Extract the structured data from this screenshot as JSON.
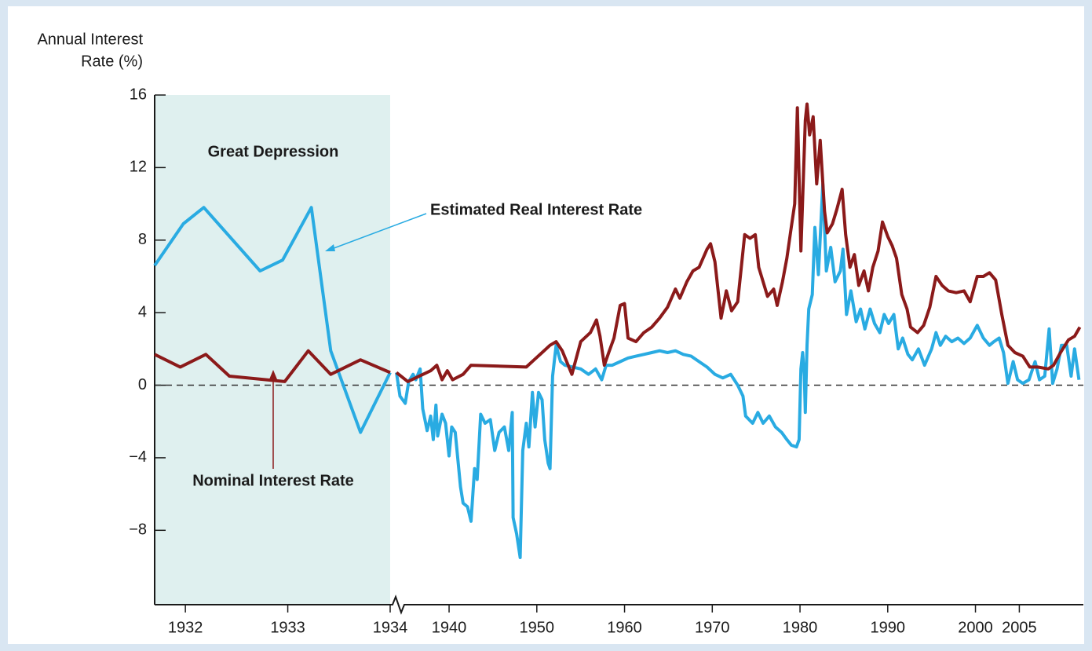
{
  "chart_data": [
    {
      "type": "line",
      "y_label": [
        "Annual Interest",
        "Rate (%)"
      ],
      "shaded_region_label": "Great Depression",
      "xlim": [
        1931.7,
        1934
      ],
      "xticks": [
        1932,
        1933,
        1934
      ],
      "ylim": [
        -12.1,
        16
      ],
      "yticks": [
        16,
        12,
        8,
        4,
        0,
        {
          "value": -4,
          "label": "−4"
        },
        {
          "value": -8,
          "label": "−8"
        }
      ],
      "series": [
        {
          "name": "Estimated Real Interest Rate",
          "color": "#29abe2",
          "x": [
            1931.7,
            1931.98,
            1932.18,
            1932.73,
            1932.95,
            1933.23,
            1933.42,
            1933.71,
            1934.0
          ],
          "values": [
            6.6,
            8.9,
            9.8,
            6.3,
            6.9,
            9.8,
            1.9,
            -2.6,
            0.7
          ]
        },
        {
          "name": "Nominal Interest Rate",
          "color": "#8b1a1a",
          "x": [
            1931.7,
            1931.95,
            1932.2,
            1932.43,
            1932.97,
            1933.2,
            1933.42,
            1933.71,
            1934.0
          ],
          "values": [
            1.7,
            1.0,
            1.7,
            0.5,
            0.2,
            1.9,
            0.6,
            1.4,
            0.7
          ]
        }
      ]
    },
    {
      "type": "line",
      "xlim": [
        1934,
        2012.3
      ],
      "xticks": [
        1940,
        1950,
        1960,
        1970,
        1980,
        1990,
        2000,
        2005
      ],
      "ylim": [
        -12.1,
        16
      ],
      "series": [
        {
          "color": "#29abe2",
          "x": [
            1934.0,
            1934.4,
            1935.0,
            1935.4,
            1935.9,
            1936.2,
            1936.7,
            1937.0,
            1937.5,
            1937.9,
            1938.2,
            1938.5,
            1938.7,
            1939.2,
            1939.6,
            1940.0,
            1940.3,
            1940.7,
            1941.3,
            1941.6,
            1942.1,
            1942.5,
            1942.9,
            1943.2,
            1943.6,
            1944.1,
            1944.7,
            1945.2,
            1945.7,
            1946.3,
            1946.8,
            1947.2,
            1947.3,
            1947.7,
            1948.1,
            1948.4,
            1948.8,
            1949.1,
            1949.5,
            1949.8,
            1950.2,
            1950.6,
            1950.9,
            1951.3,
            1951.5,
            1951.8,
            1952.2,
            1952.7,
            1953.2,
            1954.1,
            1955.0,
            1955.9,
            1956.7,
            1957.4,
            1957.9,
            1958.6,
            1959.5,
            1960.4,
            1961.3,
            1962.2,
            1963.1,
            1964.0,
            1964.9,
            1965.8,
            1966.7,
            1967.6,
            1968.5,
            1969.4,
            1970.3,
            1971.2,
            1972.1,
            1972.9,
            1973.5,
            1973.8,
            1974.6,
            1975.2,
            1975.8,
            1976.5,
            1977.2,
            1977.9,
            1978.5,
            1979.0,
            1979.6,
            1979.9,
            1980.1,
            1980.3,
            1980.5,
            1980.6,
            1980.8,
            1981.0,
            1981.4,
            1981.7,
            1982.1,
            1982.4,
            1982.6,
            1983.0,
            1983.5,
            1984.0,
            1984.6,
            1984.9,
            1985.3,
            1985.8,
            1986.4,
            1986.9,
            1987.4,
            1988.0,
            1988.5,
            1989.1,
            1989.6,
            1990.1,
            1990.7,
            1991.2,
            1991.7,
            1992.3,
            1992.8,
            1993.5,
            1994.2,
            1995.0,
            1995.5,
            1996.0,
            1996.6,
            1997.3,
            1998.0,
            1998.7,
            1999.4,
            2000.2,
            2000.9,
            2001.6,
            2002.1,
            2002.7,
            2003.2,
            2003.7,
            2004.3,
            2004.8,
            2005.4,
            2006.1,
            2006.8,
            2007.3,
            2007.9,
            2008.4,
            2008.8,
            2009.3,
            2009.8,
            2010.4,
            2010.9,
            2011.3,
            2011.8
          ],
          "values": [
            0.7,
            -0.6,
            -1.0,
            0.2,
            0.6,
            0.3,
            0.9,
            -1.3,
            -2.5,
            -1.7,
            -3.0,
            -1.1,
            -2.8,
            -1.6,
            -2.1,
            -3.9,
            -2.3,
            -2.6,
            -5.6,
            -6.5,
            -6.7,
            -7.5,
            -4.6,
            -5.2,
            -1.6,
            -2.1,
            -1.9,
            -3.6,
            -2.6,
            -2.3,
            -3.6,
            -1.5,
            -7.3,
            -8.2,
            -9.5,
            -3.6,
            -2.1,
            -3.4,
            -0.4,
            -2.3,
            -0.4,
            -0.8,
            -3.0,
            -4.3,
            -4.6,
            0.5,
            2.2,
            1.3,
            1.1,
            1.0,
            0.9,
            0.6,
            0.9,
            0.3,
            1.1,
            1.1,
            1.3,
            1.5,
            1.6,
            1.7,
            1.8,
            1.9,
            1.8,
            1.9,
            1.7,
            1.6,
            1.3,
            1.0,
            0.6,
            0.4,
            0.6,
            0.0,
            -0.6,
            -1.7,
            -2.1,
            -1.5,
            -2.1,
            -1.7,
            -2.3,
            -2.6,
            -3.0,
            -3.3,
            -3.4,
            -3.0,
            0.9,
            1.8,
            0.5,
            -1.5,
            2.2,
            4.2,
            5.0,
            8.7,
            6.1,
            9.1,
            11.1,
            6.3,
            7.6,
            5.7,
            6.3,
            7.5,
            3.9,
            5.2,
            3.5,
            4.2,
            3.1,
            4.2,
            3.4,
            2.9,
            3.9,
            3.4,
            3.9,
            2.0,
            2.6,
            1.7,
            1.4,
            2.0,
            1.1,
            2.0,
            2.9,
            2.2,
            2.7,
            2.4,
            2.6,
            2.3,
            2.6,
            3.3,
            2.6,
            2.2,
            2.4,
            2.6,
            1.8,
            0.1,
            1.3,
            0.3,
            0.1,
            0.3,
            1.3,
            0.3,
            0.5,
            3.1,
            0.1,
            0.9,
            2.2,
            2.2,
            0.5,
            2.0,
            0.3
          ]
        },
        {
          "color": "#8b1a1a",
          "x": [
            1934.0,
            1935.3,
            1937.9,
            1938.6,
            1939.2,
            1939.8,
            1940.4,
            1941.6,
            1942.5,
            1948.8,
            1949.7,
            1950.6,
            1951.5,
            1952.2,
            1952.9,
            1954.0,
            1955.0,
            1956.1,
            1956.8,
            1957.2,
            1957.7,
            1958.2,
            1958.8,
            1959.5,
            1960.0,
            1960.4,
            1961.3,
            1962.2,
            1963.1,
            1964.0,
            1964.9,
            1965.8,
            1966.3,
            1967.1,
            1967.8,
            1968.5,
            1969.4,
            1969.8,
            1970.3,
            1971.0,
            1971.6,
            1972.2,
            1972.9,
            1973.7,
            1974.3,
            1974.9,
            1975.3,
            1975.8,
            1976.3,
            1977.0,
            1977.4,
            1978.0,
            1978.5,
            1979.0,
            1979.4,
            1979.7,
            1980.1,
            1980.6,
            1980.8,
            1981.1,
            1981.5,
            1981.9,
            1982.3,
            1982.8,
            1983.1,
            1983.7,
            1984.2,
            1984.8,
            1985.2,
            1985.7,
            1986.2,
            1986.7,
            1987.3,
            1987.8,
            1988.3,
            1988.9,
            1989.4,
            1990.0,
            1990.5,
            1991.0,
            1991.6,
            1992.2,
            1992.6,
            1993.4,
            1994.1,
            1994.8,
            1995.5,
            1996.2,
            1996.9,
            1997.8,
            1998.7,
            1999.4,
            2000.2,
            2000.9,
            2001.6,
            2002.3,
            2003.0,
            2003.7,
            2004.5,
            2005.4,
            2006.2,
            2007.1,
            2008.3,
            2008.9,
            2009.7,
            2010.6,
            2011.3,
            2011.9
          ],
          "values": [
            0.7,
            0.2,
            0.8,
            1.1,
            0.3,
            0.8,
            0.3,
            0.6,
            1.1,
            1.0,
            1.4,
            1.8,
            2.2,
            2.4,
            1.9,
            0.6,
            2.4,
            2.9,
            3.6,
            2.7,
            1.1,
            1.8,
            2.6,
            4.4,
            4.5,
            2.6,
            2.4,
            2.9,
            3.2,
            3.7,
            4.3,
            5.3,
            4.8,
            5.7,
            6.3,
            6.5,
            7.5,
            7.8,
            6.8,
            3.7,
            5.2,
            4.1,
            4.6,
            8.3,
            8.1,
            8.3,
            6.5,
            5.7,
            4.9,
            5.3,
            4.4,
            5.7,
            7.0,
            8.7,
            10.0,
            15.3,
            7.4,
            14.6,
            15.5,
            13.8,
            14.8,
            11.1,
            13.5,
            9.6,
            8.4,
            8.9,
            9.7,
            10.8,
            8.3,
            6.5,
            7.2,
            5.5,
            6.3,
            5.2,
            6.5,
            7.4,
            9.0,
            8.2,
            7.7,
            7.0,
            5.0,
            4.2,
            3.2,
            2.9,
            3.3,
            4.3,
            6.0,
            5.5,
            5.2,
            5.1,
            5.2,
            4.6,
            6.0,
            6.0,
            6.2,
            5.8,
            3.9,
            2.2,
            1.8,
            1.6,
            1.0,
            1.0,
            0.9,
            1.1,
            1.8,
            2.5,
            2.7,
            3.2
          ]
        }
      ]
    }
  ]
}
